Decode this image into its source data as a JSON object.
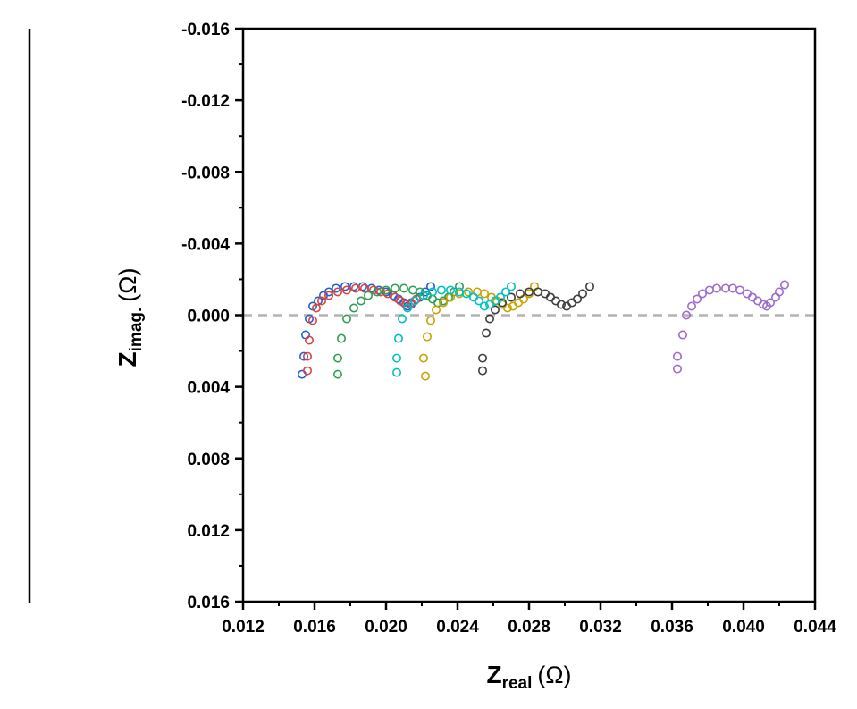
{
  "chart_data": {
    "type": "scatter",
    "title": "",
    "x_axis": {
      "label_main": "Z",
      "label_sub": "real",
      "label_unit": "(Ω)",
      "range": [
        0.012,
        0.044
      ],
      "ticks": [
        0.012,
        0.016,
        0.02,
        0.024,
        0.028,
        0.032,
        0.036,
        0.04,
        0.044
      ],
      "tick_labels": [
        "0.012",
        "0.016",
        "0.020",
        "0.024",
        "0.028",
        "0.032",
        "0.036",
        "0.040",
        "0.044"
      ]
    },
    "y_axis": {
      "label_main": "Z",
      "label_sub": "imag.",
      "label_unit": "(Ω)",
      "range_top": -0.016,
      "range_bottom": 0.016,
      "inverted": true,
      "ticks": [
        -0.016,
        -0.012,
        -0.008,
        -0.004,
        0.0,
        0.004,
        0.008,
        0.012,
        0.016
      ],
      "tick_labels": [
        "-0.016",
        "-0.012",
        "-0.008",
        "-0.004",
        "0.000",
        "0.004",
        "0.008",
        "0.012",
        "0.016"
      ]
    },
    "reference_line": {
      "y": 0.0,
      "style": "dashed",
      "color": "#b3b3b3"
    },
    "grid": false,
    "legend": "none",
    "marker": "open-circle",
    "series": [
      {
        "color": "#1f5fd0",
        "points": [
          [
            0.0153,
            0.0033
          ],
          [
            0.0154,
            0.0023
          ],
          [
            0.0155,
            0.0011
          ],
          [
            0.0157,
            0.0002
          ],
          [
            0.0159,
            -0.0005
          ],
          [
            0.0162,
            -0.0008
          ],
          [
            0.0165,
            -0.0011
          ],
          [
            0.0168,
            -0.0013
          ],
          [
            0.0172,
            -0.0015
          ],
          [
            0.0177,
            -0.0016
          ],
          [
            0.0182,
            -0.0016
          ],
          [
            0.0187,
            -0.0016
          ],
          [
            0.0192,
            -0.0015
          ],
          [
            0.0196,
            -0.0014
          ],
          [
            0.02,
            -0.0013
          ],
          [
            0.0204,
            -0.0011
          ],
          [
            0.0207,
            -0.0009
          ],
          [
            0.021,
            -0.0007
          ],
          [
            0.0212,
            -0.0005
          ],
          [
            0.0214,
            -0.0006
          ],
          [
            0.0216,
            -0.0008
          ],
          [
            0.0219,
            -0.001
          ],
          [
            0.0222,
            -0.0013
          ],
          [
            0.0225,
            -0.0016
          ]
        ]
      },
      {
        "color": "#e0413a",
        "points": [
          [
            0.0156,
            0.0031
          ],
          [
            0.0156,
            0.0023
          ],
          [
            0.0157,
            0.0014
          ],
          [
            0.0159,
            0.0003
          ],
          [
            0.0161,
            -0.0004
          ],
          [
            0.0164,
            -0.0008
          ],
          [
            0.0168,
            -0.0011
          ],
          [
            0.0173,
            -0.0013
          ],
          [
            0.0178,
            -0.0014
          ],
          [
            0.0183,
            -0.0015
          ],
          [
            0.0188,
            -0.0015
          ],
          [
            0.0193,
            -0.0014
          ],
          [
            0.0197,
            -0.0013
          ],
          [
            0.0201,
            -0.0012
          ],
          [
            0.0205,
            -0.001
          ],
          [
            0.0208,
            -0.0008
          ],
          [
            0.0211,
            -0.0006
          ],
          [
            0.0214,
            -0.0007
          ],
          [
            0.0217,
            -0.0009
          ]
        ]
      },
      {
        "color": "#2e9e53",
        "points": [
          [
            0.0173,
            0.0033
          ],
          [
            0.0173,
            0.0024
          ],
          [
            0.0175,
            0.0013
          ],
          [
            0.0178,
            0.0002
          ],
          [
            0.0182,
            -0.0004
          ],
          [
            0.0186,
            -0.0008
          ],
          [
            0.019,
            -0.0011
          ],
          [
            0.0195,
            -0.0013
          ],
          [
            0.02,
            -0.0014
          ],
          [
            0.0205,
            -0.0015
          ],
          [
            0.021,
            -0.0015
          ],
          [
            0.0215,
            -0.0014
          ],
          [
            0.0219,
            -0.0013
          ],
          [
            0.0223,
            -0.0011
          ],
          [
            0.0226,
            -0.0009
          ],
          [
            0.0229,
            -0.0007
          ],
          [
            0.0232,
            -0.0008
          ],
          [
            0.0235,
            -0.001
          ],
          [
            0.0238,
            -0.0013
          ],
          [
            0.0241,
            -0.0016
          ]
        ]
      },
      {
        "color": "#c9a100",
        "points": [
          [
            0.0222,
            0.0034
          ],
          [
            0.0221,
            0.0024
          ],
          [
            0.0223,
            0.0012
          ],
          [
            0.0225,
            0.0003
          ],
          [
            0.0228,
            -0.0003
          ],
          [
            0.0232,
            -0.0007
          ],
          [
            0.0236,
            -0.001
          ],
          [
            0.0241,
            -0.0012
          ],
          [
            0.0246,
            -0.0013
          ],
          [
            0.0251,
            -0.0013
          ],
          [
            0.0255,
            -0.0012
          ],
          [
            0.0259,
            -0.001
          ],
          [
            0.0262,
            -0.0008
          ],
          [
            0.0265,
            -0.0006
          ],
          [
            0.0268,
            -0.0004
          ],
          [
            0.0271,
            -0.0005
          ],
          [
            0.0274,
            -0.0007
          ],
          [
            0.0277,
            -0.0009
          ],
          [
            0.028,
            -0.0012
          ],
          [
            0.0283,
            -0.0016
          ]
        ]
      },
      {
        "color": "#3d3d3d",
        "points": [
          [
            0.0254,
            0.0031
          ],
          [
            0.0254,
            0.0024
          ],
          [
            0.0256,
            0.001
          ],
          [
            0.0258,
            0.0002
          ],
          [
            0.0261,
            -0.0003
          ],
          [
            0.0265,
            -0.0007
          ],
          [
            0.027,
            -0.001
          ],
          [
            0.0275,
            -0.0012
          ],
          [
            0.028,
            -0.0013
          ],
          [
            0.0285,
            -0.0013
          ],
          [
            0.0289,
            -0.0012
          ],
          [
            0.0292,
            -0.001
          ],
          [
            0.0295,
            -0.0008
          ],
          [
            0.0298,
            -0.0006
          ],
          [
            0.0301,
            -0.0005
          ],
          [
            0.0304,
            -0.0007
          ],
          [
            0.0307,
            -0.0009
          ],
          [
            0.031,
            -0.0012
          ],
          [
            0.0314,
            -0.0016
          ]
        ]
      },
      {
        "color": "#00c0c0",
        "points": [
          [
            0.0206,
            0.0032
          ],
          [
            0.0206,
            0.0024
          ],
          [
            0.0207,
            0.0013
          ],
          [
            0.0209,
            0.0002
          ],
          [
            0.0212,
            -0.0004
          ],
          [
            0.0216,
            -0.0008
          ],
          [
            0.0221,
            -0.0011
          ],
          [
            0.0226,
            -0.0013
          ],
          [
            0.0231,
            -0.0014
          ],
          [
            0.0236,
            -0.0014
          ],
          [
            0.0241,
            -0.0013
          ],
          [
            0.0245,
            -0.0012
          ],
          [
            0.0249,
            -0.001
          ],
          [
            0.0252,
            -0.0008
          ],
          [
            0.0255,
            -0.0005
          ],
          [
            0.0258,
            -0.0006
          ],
          [
            0.0261,
            -0.0008
          ],
          [
            0.0264,
            -0.001
          ],
          [
            0.0267,
            -0.0013
          ],
          [
            0.027,
            -0.0016
          ]
        ]
      },
      {
        "color": "#9c6ad0",
        "points": [
          [
            0.0363,
            0.003
          ],
          [
            0.0363,
            0.0023
          ],
          [
            0.0366,
            0.0011
          ],
          [
            0.0368,
            0.0
          ],
          [
            0.0371,
            -0.0005
          ],
          [
            0.0374,
            -0.0009
          ],
          [
            0.0377,
            -0.0012
          ],
          [
            0.0381,
            -0.0014
          ],
          [
            0.0385,
            -0.0015
          ],
          [
            0.039,
            -0.0015
          ],
          [
            0.0394,
            -0.0015
          ],
          [
            0.0398,
            -0.0014
          ],
          [
            0.0402,
            -0.0012
          ],
          [
            0.0405,
            -0.001
          ],
          [
            0.0408,
            -0.0008
          ],
          [
            0.0411,
            -0.0006
          ],
          [
            0.0413,
            -0.0005
          ],
          [
            0.0415,
            -0.0007
          ],
          [
            0.0418,
            -0.001
          ],
          [
            0.042,
            -0.0013
          ],
          [
            0.0423,
            -0.0017
          ]
        ]
      }
    ]
  }
}
